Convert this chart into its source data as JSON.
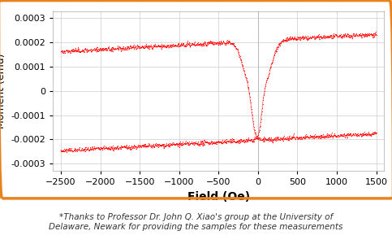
{
  "xlabel": "Field (Oe)",
  "ylabel": "Moment (emu)",
  "xlim": [
    -2600,
    1600
  ],
  "ylim": [
    -0.00033,
    0.00033
  ],
  "xticks": [
    -2500,
    -2000,
    -1500,
    -1000,
    -500,
    0,
    500,
    1000,
    1500
  ],
  "yticks": [
    -0.0003,
    -0.0002,
    -0.0001,
    0,
    0.0001,
    0.0002,
    0.0003
  ],
  "line_color": "#ff0000",
  "border_color": "#e8821e",
  "background_color": "#ffffff",
  "grid_color": "#cccccc",
  "caption": "*Thanks to Professor Dr. John Q. Xiao's group at the University of\nDelaware, Newark for providing the samples for these measurements",
  "caption_fontsize": 7.5,
  "xlabel_fontsize": 10,
  "ylabel_fontsize": 9,
  "tick_fontsize": 8
}
